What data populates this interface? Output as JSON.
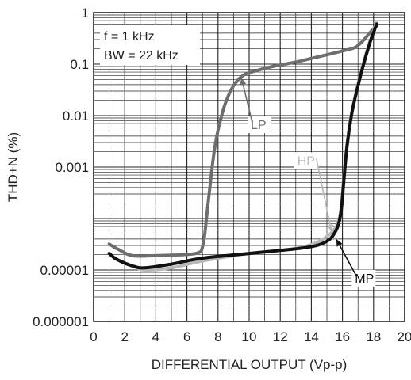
{
  "chart_data": {
    "type": "line",
    "title": "",
    "xlabel": "DIFFERENTIAL OUTPUT (Vp-p)",
    "ylabel": "THD+N (%)",
    "x_ticks": [
      "0",
      "2",
      "4",
      "6",
      "8",
      "10",
      "12",
      "14",
      "16",
      "18",
      "20"
    ],
    "y_ticks": [
      "1",
      "0.1",
      "0.01",
      "0.001",
      "0.00001",
      "0.000001"
    ],
    "xlim": [
      0,
      20
    ],
    "ylim": [
      1e-06,
      1
    ],
    "y_scale": "log",
    "grid": true,
    "annotations": [
      "f = 1 kHz",
      "BW = 22 kHz"
    ],
    "series": [
      {
        "name": "LP",
        "color": "#6e6e6e",
        "x": [
          1.0,
          1.6,
          2.5,
          4.0,
          6.0,
          6.8,
          7.0,
          7.15,
          7.4,
          7.8,
          8.3,
          8.8,
          9.3,
          9.8,
          10.5,
          11.5,
          13.0,
          14.5,
          16.0,
          16.8,
          17.3,
          17.8,
          18.2
        ],
        "y": [
          3.2e-05,
          2.5e-05,
          1.9e-05,
          1.9e-05,
          2e-05,
          2.2e-05,
          2.8e-05,
          5e-05,
          0.00025,
          0.0025,
          0.012,
          0.03,
          0.05,
          0.065,
          0.075,
          0.09,
          0.11,
          0.14,
          0.18,
          0.21,
          0.28,
          0.42,
          0.55
        ]
      },
      {
        "name": "HP",
        "color": "#b8b8b8",
        "x": [
          1.0,
          1.5,
          2.5,
          3.3,
          5.0,
          7.0,
          10.0,
          12.0,
          13.5,
          14.5,
          15.2,
          15.6,
          15.8,
          15.95,
          16.1,
          16.3,
          16.6,
          17.0,
          17.4,
          17.8,
          18.2
        ],
        "y": [
          2.1e-05,
          1.6e-05,
          1.2e-05,
          1e-05,
          1.1e-05,
          1.5e-05,
          2.1e-05,
          2.4e-05,
          2.8e-05,
          3.6e-05,
          5e-05,
          7e-05,
          0.0001,
          0.0002,
          0.0007,
          0.003,
          0.012,
          0.04,
          0.12,
          0.3,
          0.65
        ]
      },
      {
        "name": "MP",
        "color": "#111111",
        "x": [
          1.0,
          1.5,
          2.5,
          3.3,
          5.0,
          7.0,
          10.0,
          12.0,
          13.5,
          14.5,
          15.2,
          15.6,
          15.8,
          15.95,
          16.1,
          16.3,
          16.6,
          17.0,
          17.4,
          17.8,
          18.2
        ],
        "y": [
          2.1e-05,
          1.6e-05,
          1.2e-05,
          1.1e-05,
          1.3e-05,
          1.7e-05,
          2.1e-05,
          2.4e-05,
          2.7e-05,
          3.1e-05,
          4e-05,
          6e-05,
          9e-05,
          0.00017,
          0.0006,
          0.0026,
          0.011,
          0.038,
          0.11,
          0.28,
          0.6
        ]
      }
    ],
    "callouts": [
      {
        "label": "LP",
        "x": 10.1,
        "y": 0.0055,
        "target_x": 9.5,
        "target_y": 0.055
      },
      {
        "label": "HP",
        "x": 13.1,
        "y": 0.0011,
        "target_x": 15.3,
        "target_y": 5.5e-05
      },
      {
        "label": "MP",
        "x": 16.8,
        "y": 5.7e-06,
        "target_x": 15.6,
        "target_y": 4e-05
      }
    ]
  }
}
